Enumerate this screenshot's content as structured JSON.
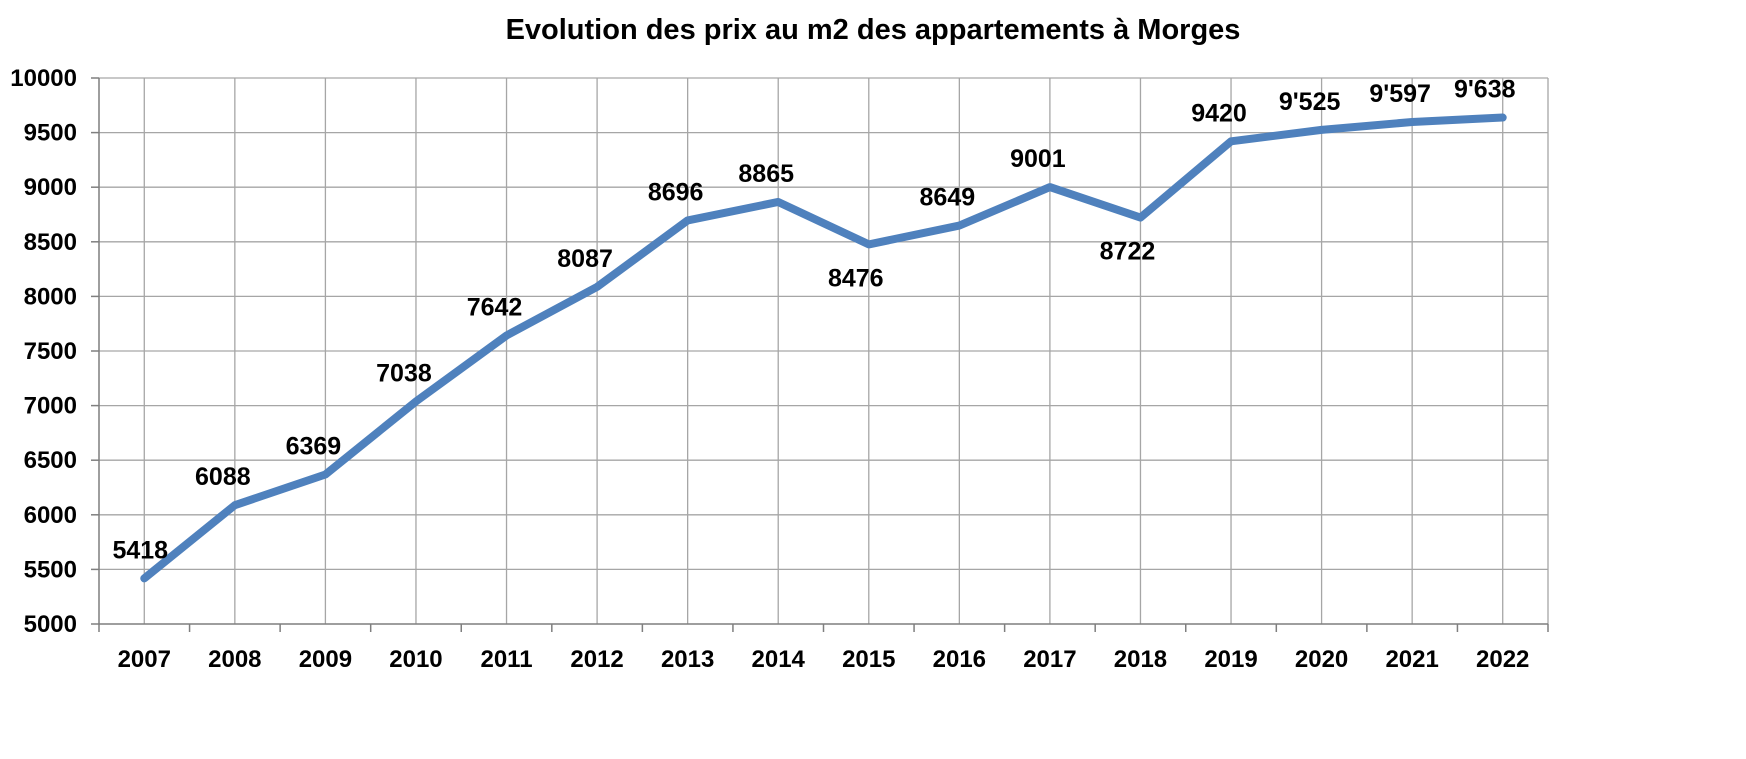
{
  "chart_data": {
    "type": "line",
    "title": "Evolution des prix au m2 des appartements à Morges",
    "xlabel": "",
    "ylabel": "",
    "categories": [
      "2007",
      "2008",
      "2009",
      "2010",
      "2011",
      "2012",
      "2013",
      "2014",
      "2015",
      "2016",
      "2017",
      "2018",
      "2019",
      "2020",
      "2021",
      "2022"
    ],
    "series": [
      {
        "values": [
          5418,
          6088,
          6369,
          7038,
          7642,
          8087,
          8696,
          8865,
          8476,
          8649,
          9001,
          8722,
          9420,
          9525,
          9597,
          9638
        ],
        "color": "#4f81bd"
      }
    ],
    "data_labels": [
      "5418",
      "6088",
      "6369",
      "7038",
      "7642",
      "8087",
      "8696",
      "8865",
      "8476",
      "8649",
      "9001",
      "8722",
      "9420",
      "9'525",
      "9'597",
      "9'638"
    ],
    "ylim": [
      5000,
      10000
    ],
    "yticks": [
      "5000",
      "5500",
      "6000",
      "6500",
      "7000",
      "7500",
      "8000",
      "8500",
      "9000",
      "9500",
      "10000"
    ],
    "grid": true,
    "legend": "none"
  }
}
